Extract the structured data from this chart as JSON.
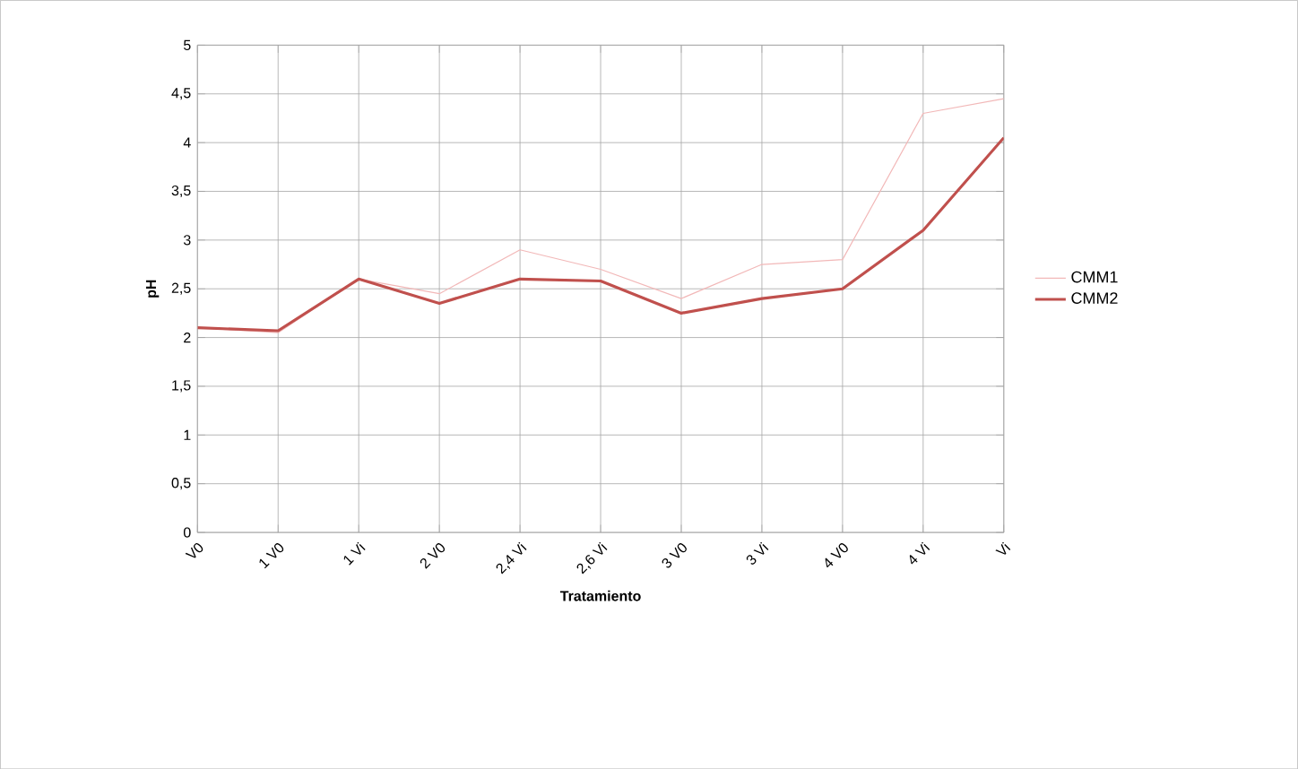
{
  "chart_data": {
    "type": "line",
    "xlabel": "Tratamiento",
    "ylabel": "pH",
    "categories": [
      "V0",
      "1 V0",
      "1 Vi",
      "2 V0",
      "2,4 Vi",
      "2,6 Vi",
      "3 V0",
      "3 Vi",
      "4 V0",
      "4 Vi",
      "Vi"
    ],
    "series": [
      {
        "name": "CMM1",
        "color": "#f2b8b8",
        "values": [
          2.1,
          2.05,
          2.6,
          2.45,
          2.9,
          2.7,
          2.4,
          2.75,
          2.8,
          4.3,
          4.45
        ]
      },
      {
        "name": "CMM2",
        "color": "#c0504d",
        "values": [
          2.1,
          2.07,
          2.6,
          2.35,
          2.6,
          2.58,
          2.25,
          2.4,
          2.5,
          3.1,
          4.05
        ]
      }
    ],
    "ylim": [
      0,
      5
    ],
    "yticks": [
      0,
      {
        "value": 0.5,
        "label": "0,5"
      },
      1,
      {
        "value": 1.5,
        "label": "1,5"
      },
      2,
      {
        "value": 2.5,
        "label": "2,5"
      },
      3,
      {
        "value": 3.5,
        "label": "3,5"
      },
      4,
      {
        "value": 4.5,
        "label": "4,5"
      },
      5
    ],
    "grid": true,
    "legend": "right",
    "marker": "none",
    "line_style": "solid"
  }
}
